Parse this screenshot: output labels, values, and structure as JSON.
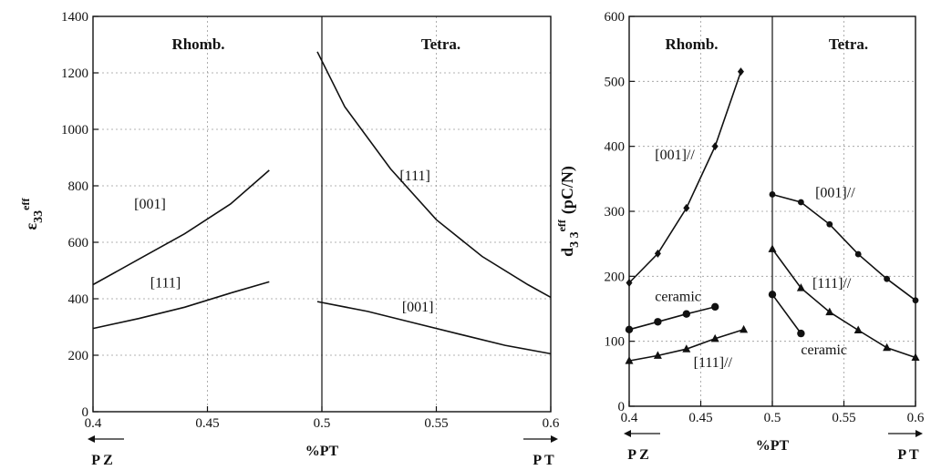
{
  "chart_data": [
    {
      "type": "line",
      "title": "",
      "xlabel": "%PT",
      "ylabel": "ε33 eff",
      "ylabel_main": "ε",
      "ylabel_sub": "33",
      "ylabel_sup": "eff",
      "xlim": [
        0.4,
        0.6
      ],
      "ylim": [
        0,
        1400
      ],
      "xticks": [
        "0.4",
        "0.45",
        "0.5",
        "0.55",
        "0.6"
      ],
      "yticks": [
        "0",
        "200",
        "400",
        "600",
        "800",
        "1000",
        "1200",
        "1400"
      ],
      "grid": true,
      "phase_boundary": 0.5,
      "regions": [
        "Rhomb.",
        "Tetra."
      ],
      "arrow_left": "P Z",
      "arrow_right": "P T",
      "series": [
        {
          "label": "[001]",
          "label_pos": [
            0.418,
            720
          ],
          "x": [
            0.4,
            0.42,
            0.44,
            0.46,
            0.477
          ],
          "y": [
            450,
            540,
            630,
            735,
            855
          ]
        },
        {
          "label": "[111]",
          "label_pos": [
            0.425,
            440
          ],
          "x": [
            0.4,
            0.42,
            0.44,
            0.46,
            0.477
          ],
          "y": [
            295,
            330,
            370,
            420,
            460
          ]
        },
        {
          "label": "[111]",
          "label_pos": [
            0.534,
            820
          ],
          "x": [
            0.498,
            0.51,
            0.53,
            0.55,
            0.57,
            0.59,
            0.6
          ],
          "y": [
            1275,
            1080,
            860,
            680,
            550,
            450,
            405
          ]
        },
        {
          "label": "[001]",
          "label_pos": [
            0.535,
            355
          ],
          "x": [
            0.498,
            0.52,
            0.54,
            0.56,
            0.58,
            0.6
          ],
          "y": [
            390,
            355,
            315,
            275,
            235,
            205
          ]
        }
      ]
    },
    {
      "type": "line",
      "title": "",
      "xlabel": "%PT",
      "ylabel": "d33 eff (pC/N)",
      "ylabel_main": "d",
      "ylabel_sub": "3 3",
      "ylabel_sup": "eff",
      "ylabel_unit": "(pC/N)",
      "xlim": [
        0.4,
        0.6
      ],
      "ylim": [
        0,
        600
      ],
      "xticks": [
        "0.4",
        "0.45",
        "0.5",
        "0.55",
        "0.6"
      ],
      "yticks": [
        "0",
        "100",
        "200",
        "300",
        "400",
        "500",
        "600"
      ],
      "grid": true,
      "phase_boundary": 0.5,
      "regions": [
        "Rhomb.",
        "Tetra."
      ],
      "arrow_left": "P Z",
      "arrow_right": "P T",
      "series": [
        {
          "label": "[001]//",
          "label_pos": [
            0.418,
            380
          ],
          "marker": "diamond",
          "x": [
            0.4,
            0.42,
            0.44,
            0.46,
            0.478
          ],
          "y": [
            190,
            235,
            305,
            400,
            515
          ]
        },
        {
          "label": "ceramic",
          "label_pos": [
            0.418,
            162
          ],
          "marker": "circle",
          "x": [
            0.4,
            0.42,
            0.44,
            0.46
          ],
          "y": [
            118,
            130,
            142,
            153
          ]
        },
        {
          "label": "[111]//",
          "label_pos": [
            0.445,
            60
          ],
          "marker": "triangle",
          "x": [
            0.4,
            0.42,
            0.44,
            0.46,
            0.48
          ],
          "y": [
            70,
            78,
            88,
            104,
            118
          ]
        },
        {
          "label": "[001]//",
          "label_pos": [
            0.53,
            322
          ],
          "marker": "dot",
          "x": [
            0.5,
            0.52,
            0.54,
            0.56,
            0.58,
            0.6
          ],
          "y": [
            326,
            314,
            280,
            234,
            196,
            163
          ]
        },
        {
          "label": "[111]//",
          "label_pos": [
            0.528,
            182
          ],
          "marker": "triangle",
          "x": [
            0.5,
            0.52,
            0.54,
            0.56,
            0.58,
            0.6
          ],
          "y": [
            242,
            182,
            145,
            117,
            90,
            75
          ]
        },
        {
          "label": "ceramic",
          "label_pos": [
            0.52,
            80
          ],
          "marker": "circle",
          "x": [
            0.5,
            0.52
          ],
          "y": [
            172,
            112
          ]
        }
      ]
    }
  ]
}
